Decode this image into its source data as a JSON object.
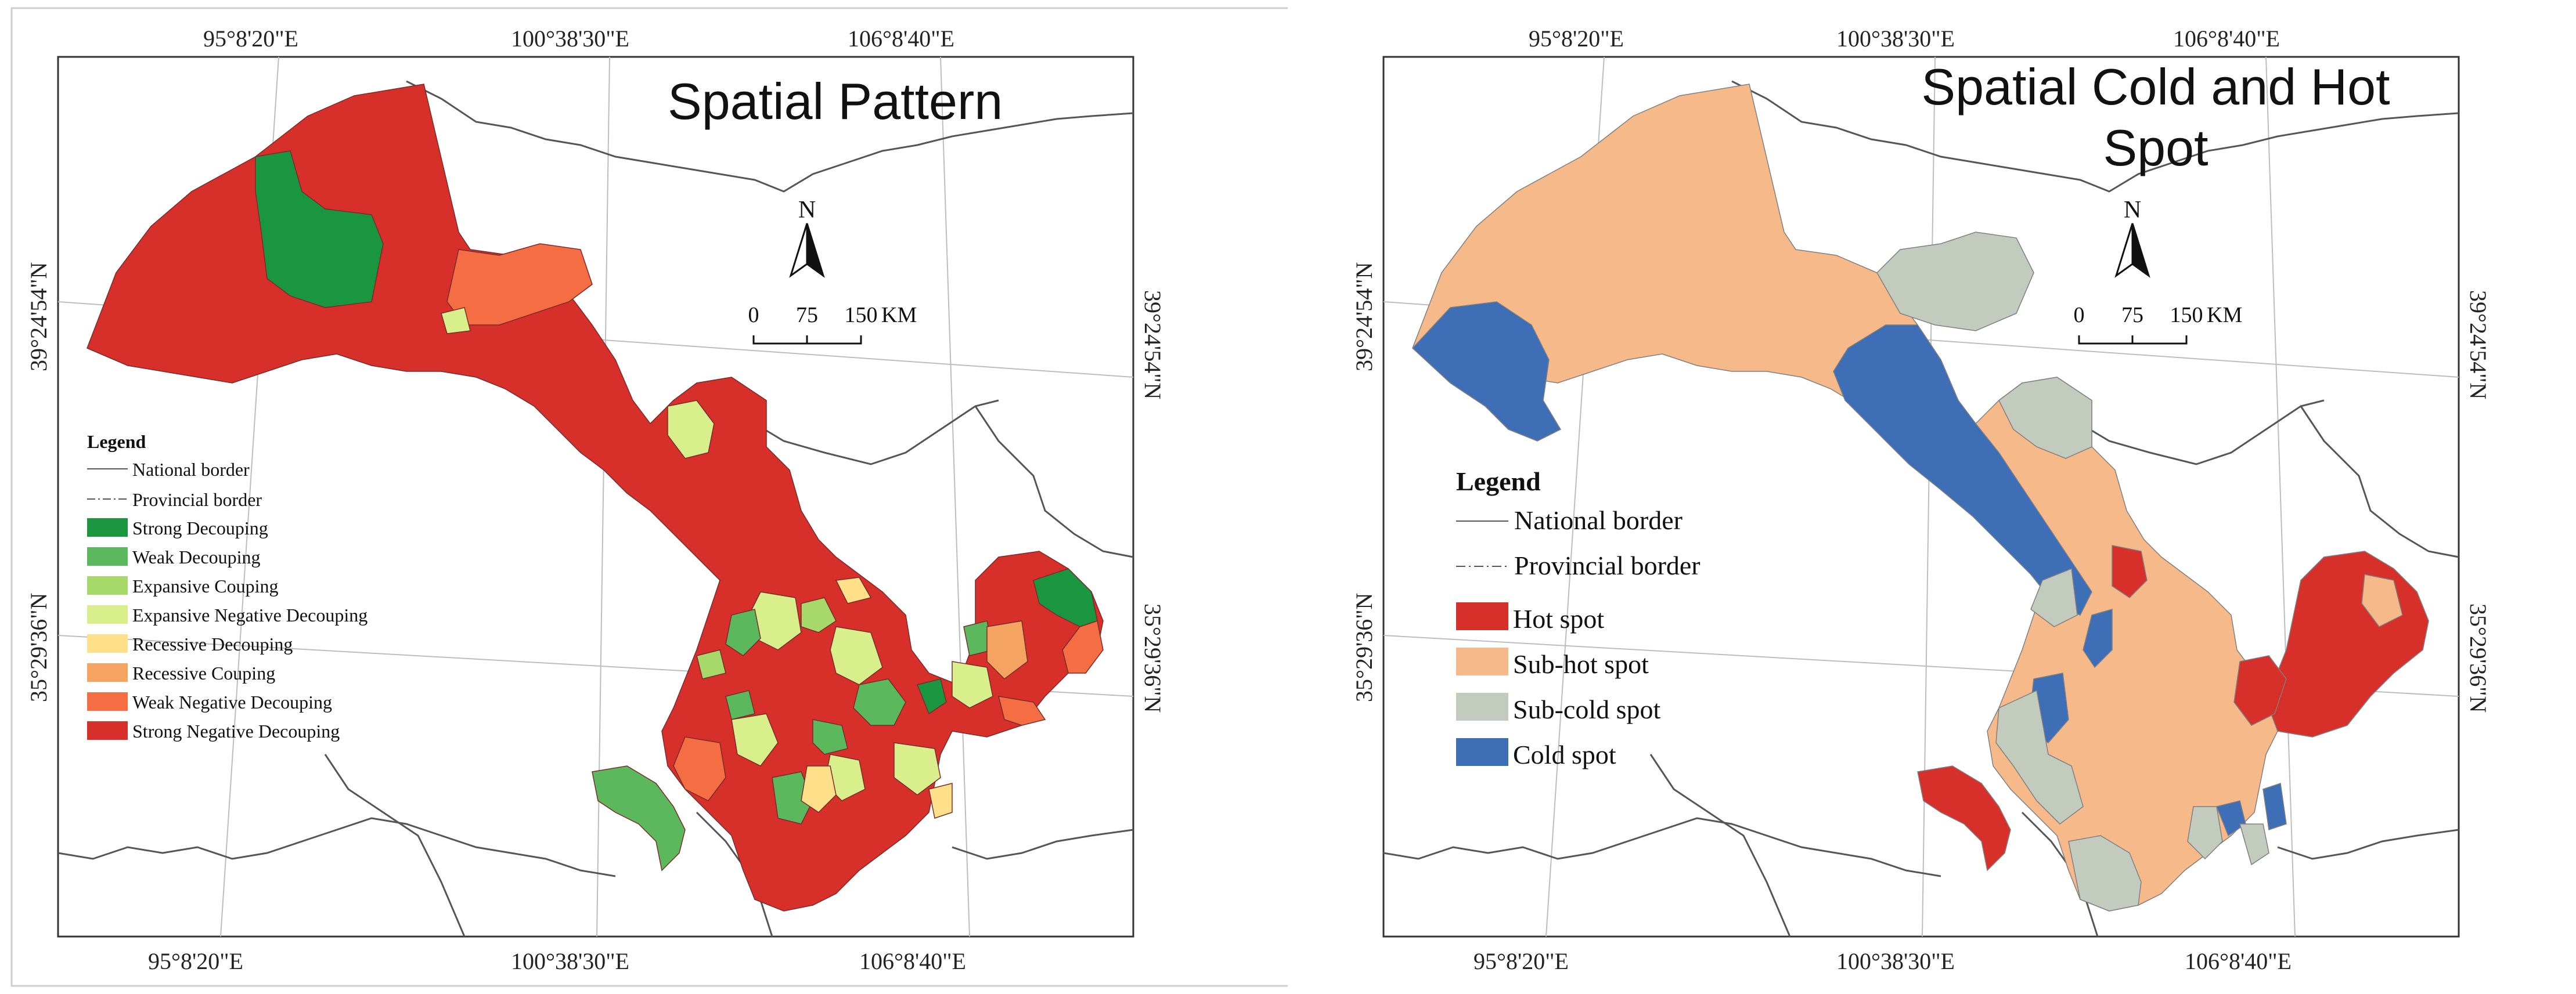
{
  "left": {
    "title": "Spatial Pattern",
    "coords": {
      "top": [
        "95°8'20\"E",
        "100°38'30\"E",
        "106°8'40\"E"
      ],
      "bottom": [
        "95°8'20\"E",
        "100°38'30\"E",
        "106°8'40\"E"
      ],
      "left": [
        "39°24'54\"N",
        "35°29'36\"N"
      ],
      "right": [
        "39°24'54\"N",
        "35°29'36\"N"
      ]
    },
    "north": "N",
    "scale": {
      "labels": [
        "0",
        "75",
        "150"
      ],
      "unit": "KM"
    },
    "legend": {
      "title": "Legend",
      "lines": [
        {
          "label": "National border",
          "style": "solid"
        },
        {
          "label": "Provincial border",
          "style": "dashdot"
        }
      ],
      "classes": [
        {
          "label": "Strong Decouping",
          "color": "#1a9641"
        },
        {
          "label": "Weak Decouping",
          "color": "#5cb85c"
        },
        {
          "label": "Expansive Couping",
          "color": "#a6d96a"
        },
        {
          "label": "Expansive Negative Decouping",
          "color": "#d9ef8b"
        },
        {
          "label": "Recessive Decouping",
          "color": "#fee08b"
        },
        {
          "label": "Recessive Couping",
          "color": "#f4a460"
        },
        {
          "label": "Weak Negative Decouping",
          "color": "#f46d43"
        },
        {
          "label": "Strong Negative Decouping",
          "color": "#d7302a"
        }
      ]
    }
  },
  "right": {
    "title_line1": "Spatial Cold and Hot",
    "title_line2": "Spot",
    "coords": {
      "top": [
        "95°8'20\"E",
        "100°38'30\"E",
        "106°8'40\"E"
      ],
      "bottom": [
        "95°8'20\"E",
        "100°38'30\"E",
        "106°8'40\"E"
      ],
      "left": [
        "39°24'54\"N",
        "35°29'36\"N"
      ],
      "right": [
        "39°24'54\"N",
        "35°29'36\"N"
      ]
    },
    "north": "N",
    "scale": {
      "labels": [
        "0",
        "75",
        "150"
      ],
      "unit": "KM"
    },
    "legend": {
      "title": "Legend",
      "lines": [
        {
          "label": "National border",
          "style": "solid"
        },
        {
          "label": "Provincial border",
          "style": "dashdot"
        }
      ],
      "classes": [
        {
          "label": "Hot spot",
          "color": "#d7302a"
        },
        {
          "label": "Sub-hot spot",
          "color": "#f5b98a"
        },
        {
          "label": "Sub-cold spot",
          "color": "#c2cbbd"
        },
        {
          "label": "Cold spot",
          "color": "#3e6fb6"
        }
      ]
    }
  }
}
